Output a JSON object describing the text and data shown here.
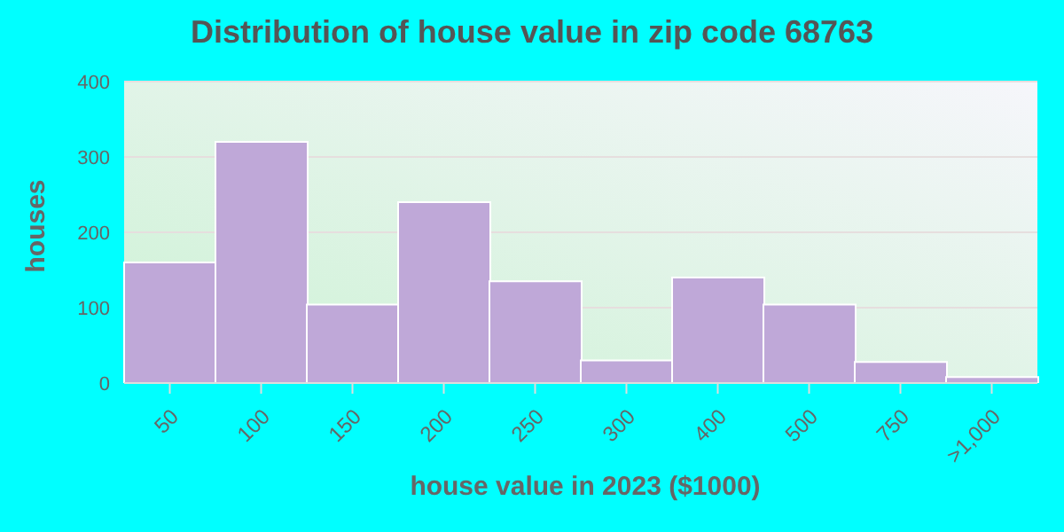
{
  "chart_data": {
    "type": "bar",
    "title": "Distribution of house value in zip code 68763",
    "xlabel": "house value in 2023 ($1000)",
    "ylabel": "houses",
    "categories": [
      "50",
      "100",
      "150",
      "200",
      "250",
      "300",
      "400",
      "500",
      "750",
      ">1,000"
    ],
    "values": [
      160,
      320,
      104,
      240,
      135,
      30,
      140,
      104,
      28,
      8
    ],
    "color": "#bfa8d8",
    "ylim": [
      0,
      400
    ],
    "yticks": [
      0,
      100,
      200,
      300,
      400
    ],
    "grid": "y"
  }
}
